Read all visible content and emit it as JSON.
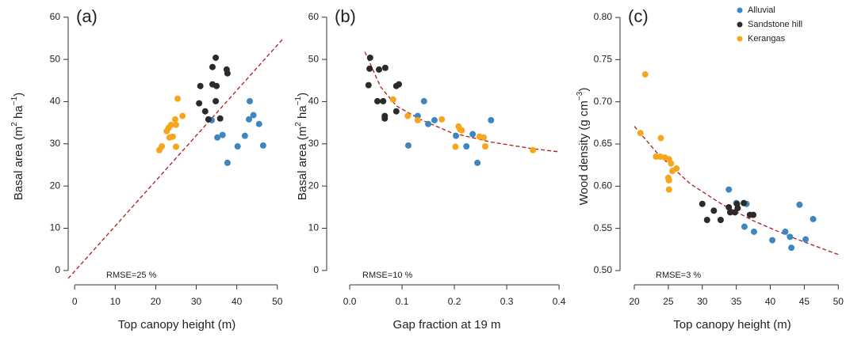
{
  "chart_data": [
    {
      "type": "scatter",
      "panel_label": "(a)",
      "xlabel": "Top canopy height (m)",
      "ylabel": [
        "Basal area (m",
        {
          "sup": "2"
        },
        " ha",
        {
          "sup": "−1"
        },
        ")"
      ],
      "annotation": "RMSE=25 %",
      "xlim": [
        -1.6,
        52
      ],
      "ylim": [
        -3.4,
        62.2
      ],
      "xticks": [
        0,
        10,
        20,
        30,
        40,
        50
      ],
      "yticks": [
        0,
        10,
        20,
        30,
        40,
        50,
        60
      ],
      "series": [
        {
          "name": "Alluvial",
          "color": "#3e86bf",
          "x": [
            33.8,
            35.2,
            36.5,
            37.7,
            42,
            43.2,
            43,
            44.1,
            45.5,
            46.5,
            40.2
          ],
          "values": [
            35.6,
            31.5,
            32.1,
            25.5,
            31.9,
            40.1,
            35.8,
            36.8,
            34.7,
            29.6,
            29.4
          ]
        },
        {
          "name": "Sandstone hill",
          "color": "#2b2b2b",
          "x": [
            30.7,
            31,
            34,
            34.8,
            34,
            35,
            34.8,
            32.2,
            33,
            35.9,
            37.5,
            37.7
          ],
          "values": [
            39.6,
            43.7,
            48.2,
            50.4,
            44.1,
            43.7,
            40.1,
            37.7,
            35.8,
            36,
            47.6,
            46.7
          ]
        },
        {
          "name": "Kerangas",
          "color": "#f7a51c",
          "x": [
            25.4,
            26.6,
            24.8,
            25,
            23.2,
            23.8,
            22.7,
            24.2,
            23.4,
            25,
            21.5,
            20.9
          ],
          "values": [
            40.7,
            36.6,
            35.8,
            34.5,
            33.8,
            34.5,
            33,
            31.7,
            31.5,
            29.3,
            29.4,
            28.5
          ]
        }
      ],
      "line": {
        "color": "#a3201e",
        "x": [
          -1.6,
          51.6
        ],
        "values": [
          -1.9,
          55.1
        ]
      }
    },
    {
      "type": "scatter",
      "panel_label": "(b)",
      "xlabel": "Gap fraction at 19 m",
      "ylabel": [
        "Basal area (m",
        {
          "sup": "2"
        },
        " ha",
        {
          "sup": "−1"
        },
        ")"
      ],
      "annotation": "RMSE=10 %",
      "xlim": [
        -0.044,
        0.415
      ],
      "ylim": [
        -3.4,
        62.2
      ],
      "xticks": [
        {
          "value": 0,
          "label": "0.0"
        },
        0.1,
        0.2,
        0.3,
        0.4
      ],
      "yticks": [
        0,
        10,
        20,
        30,
        40,
        50,
        60
      ],
      "series": [
        {
          "name": "Alluvial",
          "color": "#3e86bf",
          "x": [
            0.112,
            0.13,
            0.142,
            0.15,
            0.162,
            0.203,
            0.223,
            0.235,
            0.244,
            0.27
          ],
          "values": [
            29.6,
            36.6,
            40.1,
            34.7,
            35.6,
            31.9,
            29.4,
            32.3,
            25.5,
            35.6
          ]
        },
        {
          "name": "Sandstone hill",
          "color": "#2b2b2b",
          "x": [
            0.039,
            0.056,
            0.038,
            0.068,
            0.089,
            0.094,
            0.036,
            0.053,
            0.064,
            0.067,
            0.067,
            0.089
          ],
          "values": [
            50.4,
            47.6,
            47.8,
            48,
            43.7,
            44.1,
            43.9,
            40.1,
            40.1,
            36,
            36.6,
            37.7
          ]
        },
        {
          "name": "Kerangas",
          "color": "#f7a51c",
          "x": [
            0.083,
            0.111,
            0.13,
            0.176,
            0.208,
            0.211,
            0.214,
            0.202,
            0.248,
            0.256,
            0.259,
            0.35
          ],
          "values": [
            40.5,
            36.6,
            35.6,
            35.8,
            34.1,
            33.4,
            33.2,
            29.3,
            31.7,
            31.5,
            29.4,
            28.5
          ]
        }
      ],
      "line": {
        "color": "#a3201e",
        "x": [
          0.029,
          0.059,
          0.089,
          0.135,
          0.195,
          0.271,
          0.347,
          0.4
        ],
        "values": [
          51.8,
          43.5,
          39,
          35.8,
          32.6,
          30.4,
          28.9,
          28.1
        ]
      }
    },
    {
      "type": "scatter",
      "panel_label": "(c)",
      "xlabel": "Top canopy height (m)",
      "ylabel": [
        "Wood density (g cm",
        {
          "sup": "−3"
        },
        ")"
      ],
      "annotation": "RMSE=3 %",
      "legend": "upper right",
      "xlim": [
        17.9,
        50.9
      ],
      "ylim": [
        0.4831,
        0.8113
      ],
      "xticks": [
        20,
        25,
        30,
        35,
        40,
        45,
        50
      ],
      "yticks": [
        {
          "value": 0.5,
          "label": "0.50"
        },
        0.55,
        {
          "value": 0.6,
          "label": "0.60"
        },
        0.65,
        {
          "value": 0.7,
          "label": "0.70"
        },
        0.75,
        {
          "value": 0.8,
          "label": "0.80"
        }
      ],
      "series": [
        {
          "name": "Alluvial",
          "color": "#3e86bf",
          "x": [
            33.9,
            35,
            36.5,
            36.2,
            37.6,
            40.3,
            42.2,
            42.9,
            43.1,
            44.3,
            45.2,
            46.3
          ],
          "values": [
            0.596,
            0.58,
            0.579,
            0.552,
            0.546,
            0.536,
            0.546,
            0.54,
            0.527,
            0.578,
            0.537,
            0.561
          ]
        },
        {
          "name": "Sandstone hill",
          "color": "#2b2b2b",
          "x": [
            30,
            30.7,
            31.7,
            32.7,
            33.9,
            34.1,
            34.8,
            35.2,
            36.1,
            37,
            37.5,
            35.1
          ],
          "values": [
            0.579,
            0.56,
            0.571,
            0.56,
            0.575,
            0.569,
            0.569,
            0.574,
            0.58,
            0.566,
            0.566,
            0.579
          ]
        },
        {
          "name": "Kerangas",
          "color": "#f7a51c",
          "x": [
            21.6,
            20.9,
            23.9,
            23.2,
            23.8,
            24.5,
            25.1,
            25.4,
            25.6,
            25,
            25.1,
            25.1,
            26.2
          ],
          "values": [
            0.7325,
            0.663,
            0.657,
            0.635,
            0.635,
            0.634,
            0.632,
            0.627,
            0.618,
            0.61,
            0.607,
            0.596,
            0.621
          ]
        }
      ],
      "line": {
        "color": "#a3201e",
        "x": [
          20,
          23.5,
          28.2,
          32.8,
          37.5,
          43.3,
          50
        ],
        "values": [
          0.671,
          0.638,
          0.603,
          0.579,
          0.559,
          0.539,
          0.519
        ]
      }
    }
  ]
}
